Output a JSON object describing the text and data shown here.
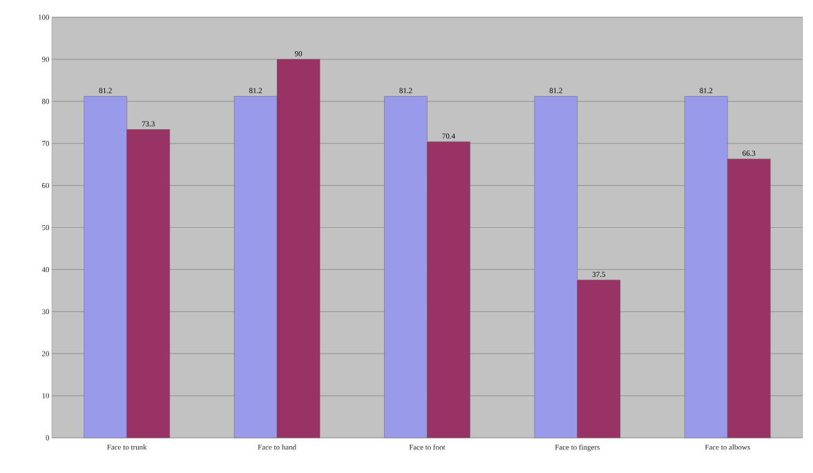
{
  "chart_data": {
    "type": "bar",
    "categories": [
      "Face to trunk",
      "Face to hand",
      "Face to foot",
      "Face to fingers",
      "Face to albows"
    ],
    "series": [
      {
        "color": "#9a9aea",
        "values": [
          81.2,
          81.2,
          81.2,
          81.2,
          81.2
        ]
      },
      {
        "color": "#993366",
        "values": [
          73.3,
          90,
          70.4,
          37.5,
          66.3
        ]
      }
    ],
    "ylim": [
      0,
      100
    ],
    "yticks": [
      0,
      10,
      20,
      30,
      40,
      50,
      60,
      70,
      80,
      90,
      100
    ],
    "grid": "y",
    "data_labels": true
  }
}
